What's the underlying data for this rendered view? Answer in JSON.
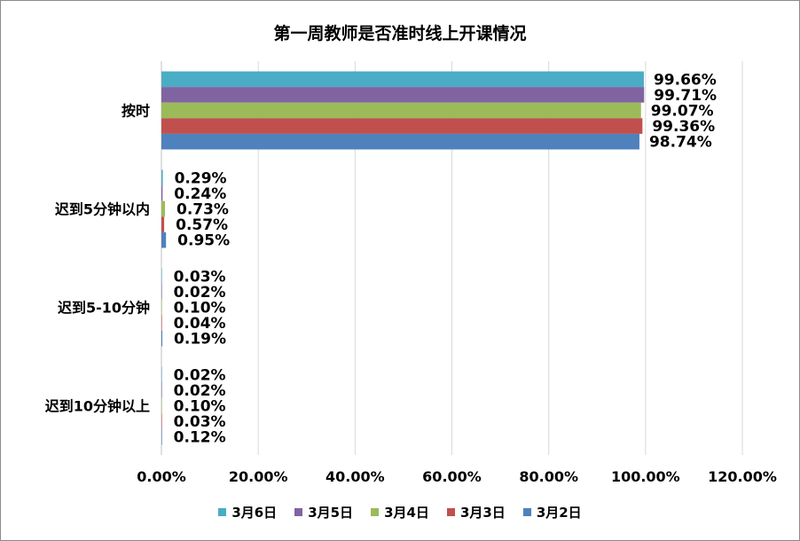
{
  "chart_data": {
    "type": "bar",
    "orientation": "horizontal",
    "title": "第一周教师是否准时线上开课情况",
    "categories": [
      "按时",
      "迟到5分钟以内",
      "迟到5-10分钟",
      "迟到10分钟以上"
    ],
    "series": [
      {
        "name": "3月6日",
        "color": "#4bacc6",
        "values": [
          99.66,
          0.29,
          0.03,
          0.02
        ],
        "labels": [
          "99.66%",
          "0.29%",
          "0.03%",
          "0.02%"
        ]
      },
      {
        "name": "3月5日",
        "color": "#8064a2",
        "values": [
          99.71,
          0.24,
          0.02,
          0.02
        ],
        "labels": [
          "99.71%",
          "0.24%",
          "0.02%",
          "0.02%"
        ]
      },
      {
        "name": "3月4日",
        "color": "#9bbb59",
        "values": [
          99.07,
          0.73,
          0.1,
          0.1
        ],
        "labels": [
          "99.07%",
          "0.73%",
          "0.10%",
          "0.10%"
        ]
      },
      {
        "name": "3月3日",
        "color": "#c0504d",
        "values": [
          99.36,
          0.57,
          0.04,
          0.03
        ],
        "labels": [
          "99.36%",
          "0.57%",
          "0.04%",
          "0.03%"
        ]
      },
      {
        "name": "3月2日",
        "color": "#4f81bd",
        "values": [
          98.74,
          0.95,
          0.19,
          0.12
        ],
        "labels": [
          "98.74%",
          "0.95%",
          "0.19%",
          "0.12%"
        ]
      }
    ],
    "xlim": [
      0,
      120
    ],
    "xticks": [
      0,
      20,
      40,
      60,
      80,
      100,
      120
    ],
    "xtick_labels": [
      "0.00%",
      "20.00%",
      "40.00%",
      "60.00%",
      "80.00%",
      "100.00%",
      "120.00%"
    ],
    "grid": true,
    "legend_position": "bottom",
    "legend_order": [
      "3月6日",
      "3月5日",
      "3月4日",
      "3月3日",
      "3月2日"
    ]
  }
}
